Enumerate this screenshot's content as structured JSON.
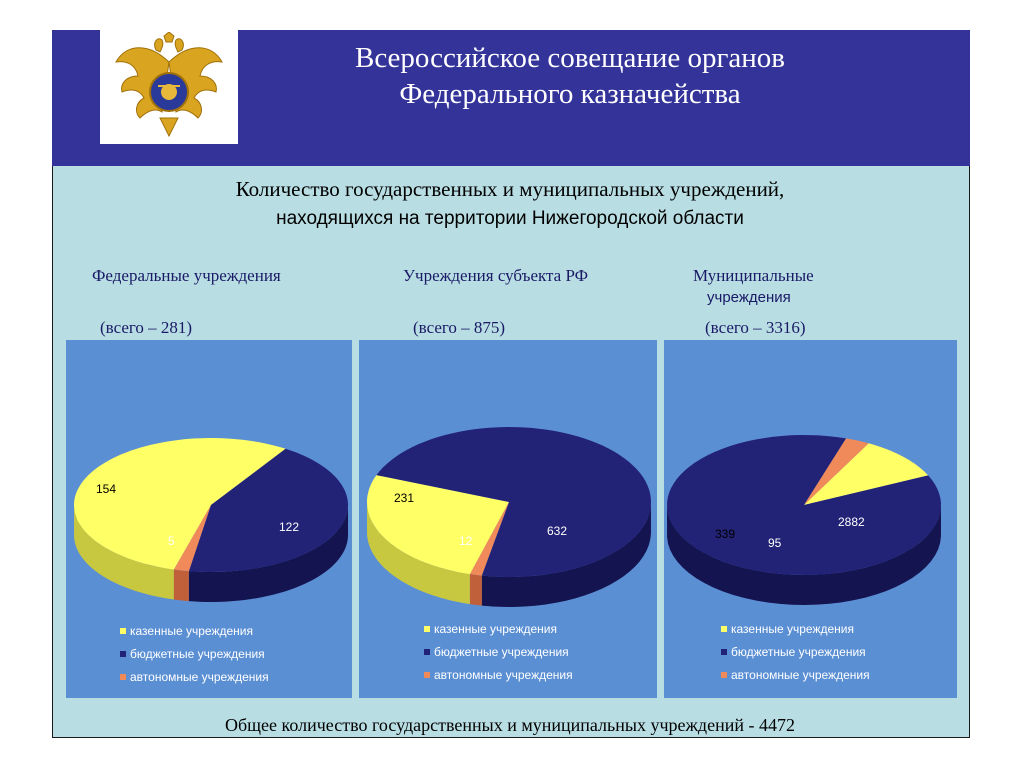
{
  "header": {
    "title_line1": "Всероссийское совещание органов",
    "title_line2": "Федерального казначейства"
  },
  "subtitle": {
    "line1": "Количество государственных и муниципальных учреждений,",
    "line2": "находящихся на территории Нижегородской области"
  },
  "groups": [
    {
      "title": "Федеральные учреждения",
      "title2": "",
      "total": "(всего – 281)"
    },
    {
      "title": "Учреждения субъекта РФ",
      "title2": "",
      "total": "(всего – 875)"
    },
    {
      "title": "Муниципальные",
      "title2": "учреждения",
      "total": "(всего – 3316)"
    }
  ],
  "legend": [
    "казенные учреждения",
    "бюджетные учреждения",
    "автономные учреждения"
  ],
  "colors": {
    "kazennye": "#ffff66",
    "byudzhetnye": "#222277",
    "avtonomnye": "#f08a5a",
    "header": "#333399",
    "background": "#b8dde3",
    "panel": "#5b8fd4"
  },
  "chart_data": [
    {
      "type": "pie",
      "title": "Федеральные учреждения",
      "categories": [
        "казенные учреждения",
        "бюджетные учреждения",
        "автономные учреждения"
      ],
      "values": [
        154,
        122,
        5
      ],
      "total": 281
    },
    {
      "type": "pie",
      "title": "Учреждения субъекта РФ",
      "categories": [
        "казенные учреждения",
        "бюджетные учреждения",
        "автономные учреждения"
      ],
      "values": [
        231,
        632,
        12
      ],
      "total": 875
    },
    {
      "type": "pie",
      "title": "Муниципальные учреждения",
      "categories": [
        "казенные учреждения",
        "бюджетные учреждения",
        "автономные учреждения"
      ],
      "values": [
        339,
        2882,
        95
      ],
      "total": 3316
    }
  ],
  "footer": "Общее количество государственных и муниципальных учреждений - 4472"
}
